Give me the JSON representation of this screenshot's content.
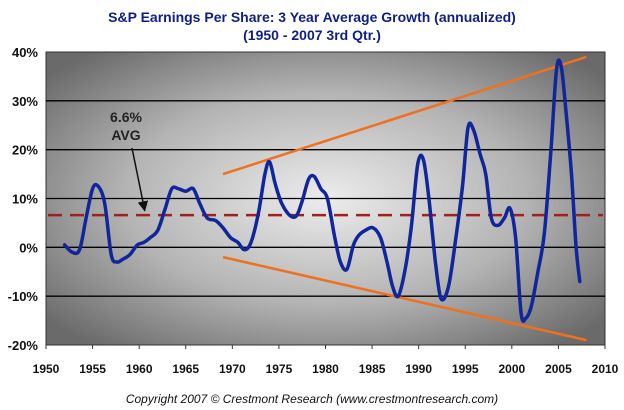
{
  "chart_data": {
    "type": "line",
    "title": "S&P Earnings Per Share:   3 Year Average Growth  (annualized)",
    "subtitle": "(1950 - 2007 3rd Qtr.)",
    "xlim": [
      1950,
      2010
    ],
    "ylim": [
      -20,
      40
    ],
    "x_ticks": [
      1950,
      1955,
      1960,
      1965,
      1970,
      1975,
      1980,
      1985,
      1990,
      1995,
      2000,
      2005,
      2010
    ],
    "y_ticks": [
      -20,
      -10,
      0,
      10,
      20,
      30,
      40
    ],
    "y_tick_labels": [
      "-20%",
      "-10%",
      "0%",
      "10%",
      "20%",
      "30%",
      "40%"
    ],
    "grid": "horizontal",
    "series": [
      {
        "color": "#10269a",
        "x": [
          1952.0,
          1952.8,
          1953.6,
          1954.3,
          1955.0,
          1955.6,
          1956.3,
          1957.0,
          1957.6,
          1958.2,
          1959.0,
          1959.8,
          1960.5,
          1961.2,
          1962.0,
          1962.8,
          1963.5,
          1964.2,
          1965.0,
          1965.8,
          1966.5,
          1967.3,
          1968.2,
          1969.0,
          1969.8,
          1970.6,
          1971.3,
          1972.0,
          1972.8,
          1973.5,
          1974.0,
          1974.6,
          1975.3,
          1976.2,
          1976.9,
          1977.5,
          1978.2,
          1978.8,
          1979.5,
          1980.2,
          1981.0,
          1981.6,
          1982.3,
          1983.0,
          1983.6,
          1984.3,
          1985.1,
          1985.9,
          1986.6,
          1987.2,
          1987.8,
          1988.5,
          1989.2,
          1989.9,
          1990.5,
          1991.1,
          1991.8,
          1992.4,
          1993.2,
          1994.0,
          1994.7,
          1995.3,
          1995.9,
          1996.6,
          1997.2,
          1997.8,
          1998.5,
          1999.2,
          1999.8,
          2000.4,
          2001.0,
          2001.5,
          2002.1,
          2002.8,
          2003.5,
          2004.2,
          2004.8,
          2005.3,
          2005.8,
          2006.4,
          2006.9,
          2007.3
        ],
        "y": [
          0.5,
          -1.0,
          -0.5,
          6.0,
          12.0,
          12.5,
          9.0,
          -1.5,
          -3.0,
          -2.5,
          -1.5,
          0.5,
          1.0,
          2.0,
          3.5,
          8.0,
          12.0,
          12.0,
          11.5,
          12.0,
          9.0,
          6.0,
          5.5,
          4.0,
          2.0,
          1.0,
          -0.5,
          1.0,
          7.0,
          15.0,
          17.5,
          13.0,
          9.0,
          6.5,
          6.5,
          9.5,
          14.0,
          14.5,
          12.0,
          10.0,
          2.0,
          -3.0,
          -4.5,
          0.5,
          2.5,
          3.5,
          4.0,
          2.0,
          -3.0,
          -8.0,
          -10.0,
          -5.0,
          4.0,
          17.0,
          18.0,
          10.0,
          -3.0,
          -10.5,
          -8.0,
          2.0,
          12.5,
          24.5,
          24.0,
          19.0,
          15.0,
          6.0,
          4.5,
          6.0,
          8.0,
          2.0,
          -13.5,
          -14.5,
          -12.0,
          -5.0,
          3.0,
          20.0,
          36.5,
          37.0,
          28.0,
          15.0,
          0.0,
          -7.0
        ]
      }
    ],
    "average_line": {
      "value": 6.6,
      "color": "#a0201e"
    },
    "trend_lines": [
      {
        "color": "#f07020",
        "x": [
          1969,
          2008
        ],
        "y": [
          15.0,
          39.0
        ]
      },
      {
        "color": "#f07020",
        "x": [
          1969,
          2008
        ],
        "y": [
          -2.0,
          -19.0
        ]
      }
    ],
    "annotations": [
      {
        "text_line1": "6.6%",
        "text_line2": "AVG",
        "arrow_to": [
          1960.6,
          7.5
        ]
      }
    ]
  },
  "footer": "Copyright 2007  ©   Crestmont Research  (www.crestmontresearch.com)"
}
